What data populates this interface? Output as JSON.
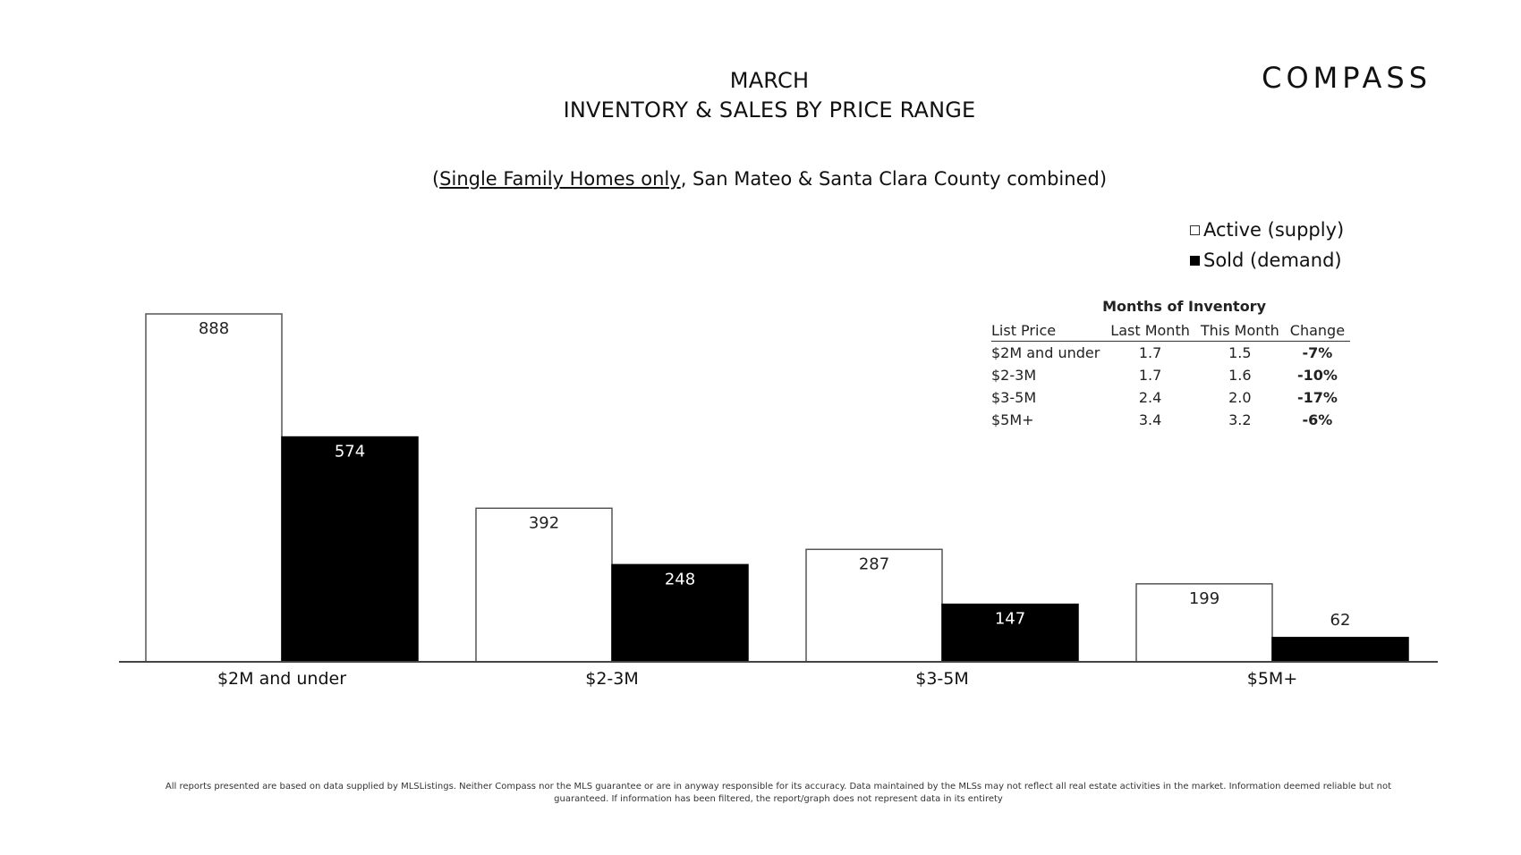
{
  "header": {
    "title_line1": "MARCH",
    "title_line2": "INVENTORY & SALES BY PRICE RANGE",
    "logo_text": "COMPASS",
    "subtitle_underlined": "Single Family Homes only",
    "subtitle_rest": ", San Mateo & Santa Clara County combined)",
    "subtitle_open": "("
  },
  "legend": {
    "active_label": "Active (supply)",
    "sold_label": "Sold (demand)"
  },
  "months_of_inventory": {
    "title": "Months of Inventory",
    "headers": [
      "List Price",
      "Last Month",
      "This Month",
      "Change"
    ],
    "rows": [
      [
        "$2M and under",
        "1.7",
        "1.5",
        "-7%"
      ],
      [
        "$2-3M",
        "1.7",
        "1.6",
        "-10%"
      ],
      [
        "$3-5M",
        "2.4",
        "2.0",
        "-17%"
      ],
      [
        "$5M+",
        "3.4",
        "3.2",
        "-6%"
      ]
    ]
  },
  "chart_data": {
    "type": "bar",
    "categories": [
      "$2M and under",
      "$2-3M",
      "$3-5M",
      "$5M+"
    ],
    "series": [
      {
        "name": "Active (supply)",
        "values": [
          888,
          392,
          287,
          199
        ],
        "color": "#ffffff"
      },
      {
        "name": "Sold (demand)",
        "values": [
          574,
          248,
          147,
          62
        ],
        "color": "#000000"
      }
    ],
    "ylim": [
      0,
      888
    ],
    "grid": false,
    "legend_placement": "top-right"
  },
  "disclaimer": {
    "line1": "All reports presented are based on data supplied by MLSListings. Neither Compass nor the MLS guarantee or are in anyway responsible for its accuracy. Data maintained by the MLSs may not reflect all real estate activities in the market. Information deemed reliable but not",
    "line2": "guaranteed. If information has been filtered, the report/graph does not represent data in its entirety"
  }
}
